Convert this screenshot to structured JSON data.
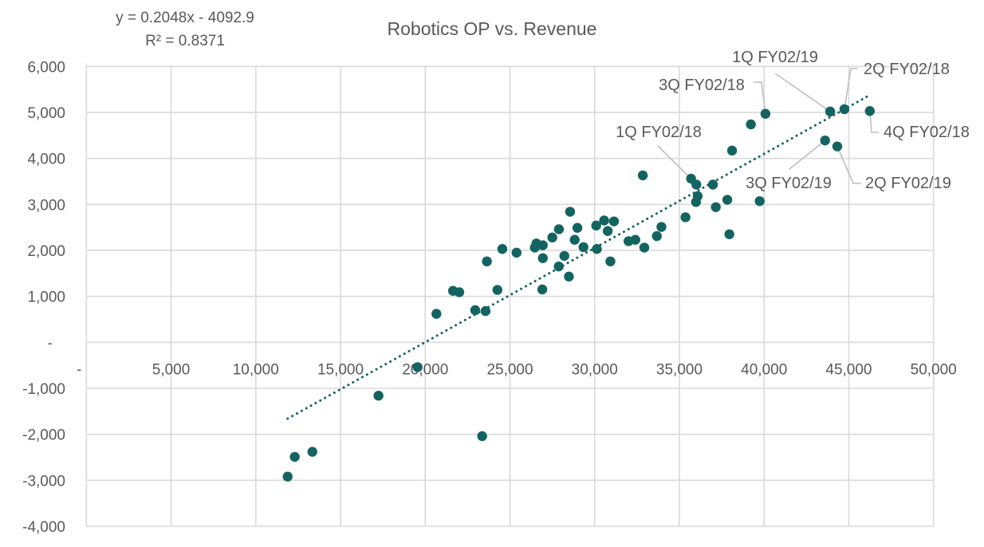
{
  "chart_data": {
    "type": "scatter",
    "title": "Robotics OP vs. Revenue",
    "xlabel": "",
    "ylabel": "",
    "xlim": [
      0,
      50000
    ],
    "ylim": [
      -4000,
      6000
    ],
    "grid": true,
    "x_ticks": [
      {
        "value": 0,
        "label": "-"
      },
      {
        "value": 5000,
        "label": "5,000"
      },
      {
        "value": 10000,
        "label": "10,000"
      },
      {
        "value": 15000,
        "label": "15,000"
      },
      {
        "value": 20000,
        "label": "20,000"
      },
      {
        "value": 25000,
        "label": "25,000"
      },
      {
        "value": 30000,
        "label": "30,000"
      },
      {
        "value": 35000,
        "label": "35,000"
      },
      {
        "value": 40000,
        "label": "40,000"
      },
      {
        "value": 45000,
        "label": "45,000"
      },
      {
        "value": 50000,
        "label": "50,000"
      }
    ],
    "y_ticks": [
      {
        "value": 6000,
        "label": "6,000"
      },
      {
        "value": 5000,
        "label": "5,000"
      },
      {
        "value": 4000,
        "label": "4,000"
      },
      {
        "value": 3000,
        "label": "3,000"
      },
      {
        "value": 2000,
        "label": "2,000"
      },
      {
        "value": 1000,
        "label": "1,000"
      },
      {
        "value": 0,
        "label": "-"
      },
      {
        "value": -1000,
        "label": "-1,000"
      },
      {
        "value": -2000,
        "label": "-2,000"
      },
      {
        "value": -3000,
        "label": "-3,000"
      },
      {
        "value": -4000,
        "label": "-4,000"
      }
    ],
    "marker_color": "#136460",
    "trendline": {
      "type": "linear",
      "slope": 0.2048,
      "intercept": -4092.9,
      "x_range": [
        11880,
        46240
      ],
      "equation_label": "y = 0.2048x - 4092.9",
      "r2_label": "R² = 0.8371",
      "color": "#136460",
      "style": "dotted"
    },
    "series": [
      {
        "name": "Robotics",
        "points": [
          {
            "x": 11880,
            "y": -2920
          },
          {
            "x": 12300,
            "y": -2490
          },
          {
            "x": 13340,
            "y": -2380
          },
          {
            "x": 17240,
            "y": -1160
          },
          {
            "x": 19550,
            "y": -540
          },
          {
            "x": 23360,
            "y": -2040
          },
          {
            "x": 20660,
            "y": 620
          },
          {
            "x": 21640,
            "y": 1120
          },
          {
            "x": 22010,
            "y": 1090
          },
          {
            "x": 22950,
            "y": 700
          },
          {
            "x": 23560,
            "y": 680
          },
          {
            "x": 23640,
            "y": 1760
          },
          {
            "x": 24260,
            "y": 1140
          },
          {
            "x": 24550,
            "y": 2030
          },
          {
            "x": 25390,
            "y": 1950
          },
          {
            "x": 26470,
            "y": 2060
          },
          {
            "x": 26560,
            "y": 2150
          },
          {
            "x": 26940,
            "y": 2110
          },
          {
            "x": 26940,
            "y": 1830
          },
          {
            "x": 26910,
            "y": 1150
          },
          {
            "x": 27500,
            "y": 2280
          },
          {
            "x": 27890,
            "y": 2460
          },
          {
            "x": 27880,
            "y": 1650
          },
          {
            "x": 28210,
            "y": 1880
          },
          {
            "x": 28550,
            "y": 2840
          },
          {
            "x": 28480,
            "y": 1430
          },
          {
            "x": 28820,
            "y": 2230
          },
          {
            "x": 28980,
            "y": 2490
          },
          {
            "x": 29340,
            "y": 2070
          },
          {
            "x": 30090,
            "y": 2540
          },
          {
            "x": 30130,
            "y": 2030
          },
          {
            "x": 30560,
            "y": 2650
          },
          {
            "x": 30770,
            "y": 2420
          },
          {
            "x": 30930,
            "y": 1760
          },
          {
            "x": 31140,
            "y": 2630
          },
          {
            "x": 32000,
            "y": 2200
          },
          {
            "x": 32400,
            "y": 2230
          },
          {
            "x": 32840,
            "y": 3630
          },
          {
            "x": 32930,
            "y": 2060
          },
          {
            "x": 33670,
            "y": 2310
          },
          {
            "x": 33940,
            "y": 2510
          },
          {
            "x": 35360,
            "y": 2720
          },
          {
            "x": 35690,
            "y": 3560,
            "label": "1Q FY02/18"
          },
          {
            "x": 36000,
            "y": 3430
          },
          {
            "x": 36080,
            "y": 3180
          },
          {
            "x": 35980,
            "y": 3050
          },
          {
            "x": 36980,
            "y": 3430
          },
          {
            "x": 37150,
            "y": 2940
          },
          {
            "x": 37830,
            "y": 3100
          },
          {
            "x": 37950,
            "y": 2350
          },
          {
            "x": 38110,
            "y": 4170
          },
          {
            "x": 39220,
            "y": 4740
          },
          {
            "x": 39740,
            "y": 3070
          },
          {
            "x": 40080,
            "y": 4970,
            "label": "3Q FY02/18"
          },
          {
            "x": 43600,
            "y": 4390,
            "label": "3Q FY02/19"
          },
          {
            "x": 43900,
            "y": 5020,
            "label": "1Q FY02/19"
          },
          {
            "x": 44320,
            "y": 4260,
            "label": "2Q FY02/19"
          },
          {
            "x": 44740,
            "y": 5070,
            "label": "2Q FY02/18"
          },
          {
            "x": 46240,
            "y": 5030,
            "label": "4Q FY02/18"
          }
        ]
      }
    ],
    "annotations": [
      {
        "text": "1Q FY02/18",
        "target": {
          "x": 35690,
          "y": 3560
        }
      },
      {
        "text": "3Q FY02/18",
        "target": {
          "x": 40080,
          "y": 4970
        }
      },
      {
        "text": "1Q FY02/19",
        "target": {
          "x": 43900,
          "y": 5020
        }
      },
      {
        "text": "2Q FY02/18",
        "target": {
          "x": 44740,
          "y": 5070
        }
      },
      {
        "text": "4Q FY02/18",
        "target": {
          "x": 46240,
          "y": 5030
        }
      },
      {
        "text": "3Q FY02/19",
        "target": {
          "x": 43600,
          "y": 4390
        }
      },
      {
        "text": "2Q FY02/19",
        "target": {
          "x": 44320,
          "y": 4260
        }
      }
    ],
    "gridline_color": "#d9d9d9",
    "leader_color": "#bfbfbf",
    "text_color": "#595959"
  }
}
